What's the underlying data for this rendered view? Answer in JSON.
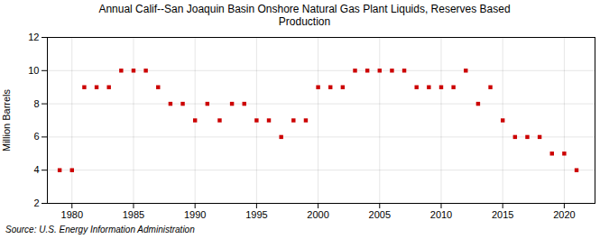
{
  "chart_data": {
    "type": "scatter",
    "title": "Annual Calif--San Joaquin Basin Onshore Natural Gas Plant Liquids, Reserves Based\nProduction",
    "ylabel": "Million Barrels",
    "source": "Source: U.S. Energy Information Administration",
    "x": [
      1979,
      1980,
      1981,
      1982,
      1983,
      1984,
      1985,
      1986,
      1987,
      1988,
      1989,
      1990,
      1991,
      1992,
      1993,
      1994,
      1995,
      1996,
      1997,
      1998,
      1999,
      2000,
      2001,
      2002,
      2003,
      2004,
      2005,
      2006,
      2007,
      2008,
      2009,
      2010,
      2011,
      2012,
      2013,
      2014,
      2015,
      2016,
      2017,
      2018,
      2019,
      2020,
      2021
    ],
    "values": [
      4.0,
      4.0,
      9.0,
      9.0,
      9.0,
      10.0,
      10.0,
      10.0,
      9.0,
      8.0,
      8.0,
      7.0,
      8.0,
      7.0,
      8.0,
      8.0,
      7.0,
      7.0,
      6.0,
      7.0,
      7.0,
      9.0,
      9.0,
      9.0,
      10.0,
      10.0,
      10.0,
      10.0,
      10.0,
      9.0,
      9.0,
      9.0,
      9.0,
      10.0,
      8.0,
      9.0,
      7.0,
      6.0,
      6.0,
      6.0,
      5.0,
      5.0,
      4.0
    ],
    "color": "#cc0000",
    "marker": "square",
    "xlim": [
      1978,
      2022.5
    ],
    "ylim": [
      2,
      12
    ],
    "xticks": [
      1980,
      1985,
      1990,
      1995,
      2000,
      2005,
      2010,
      2015,
      2020
    ],
    "yticks": [
      2,
      4,
      6,
      8,
      10,
      12
    ],
    "grid": true
  }
}
